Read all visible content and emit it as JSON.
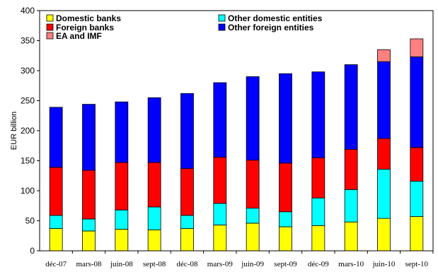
{
  "chart_data": {
    "type": "bar",
    "stacked": true,
    "title": "",
    "xlabel": "",
    "ylabel": "EUR billion",
    "ylim": [
      0,
      400
    ],
    "yticks": [
      0,
      50,
      100,
      150,
      200,
      250,
      300,
      350,
      400
    ],
    "grid": false,
    "legend_position": "top-left",
    "categories": [
      "déc-07",
      "mars-08",
      "juin-08",
      "sept-08",
      "déc-08",
      "mars-09",
      "juin-09",
      "sept-09",
      "déc-09",
      "mars-10",
      "juin-10",
      "sept-10"
    ],
    "series": [
      {
        "name": "Domestic banks",
        "color": "#ffff00",
        "values": [
          37,
          33,
          36,
          35,
          37,
          43,
          46,
          40,
          42,
          48,
          54,
          57
        ]
      },
      {
        "name": "Other domestic entities",
        "color": "#00ffff",
        "values": [
          22,
          20,
          32,
          38,
          22,
          36,
          25,
          25,
          46,
          54,
          82,
          59
        ]
      },
      {
        "name": "Foreign banks",
        "color": "#ff0000",
        "values": [
          80,
          81,
          79,
          74,
          78,
          77,
          80,
          81,
          67,
          67,
          51,
          56
        ]
      },
      {
        "name": "Other foreign entities",
        "color": "#0000ff",
        "values": [
          100,
          110,
          101,
          108,
          125,
          124,
          139,
          149,
          143,
          141,
          128,
          151
        ]
      },
      {
        "name": "EA and IMF",
        "color": "#ff8080",
        "values": [
          0,
          0,
          0,
          0,
          0,
          0,
          0,
          0,
          0,
          0,
          20,
          30
        ]
      }
    ],
    "legend_layout": [
      [
        0,
        1
      ],
      [
        2,
        3
      ],
      [
        4
      ]
    ]
  }
}
